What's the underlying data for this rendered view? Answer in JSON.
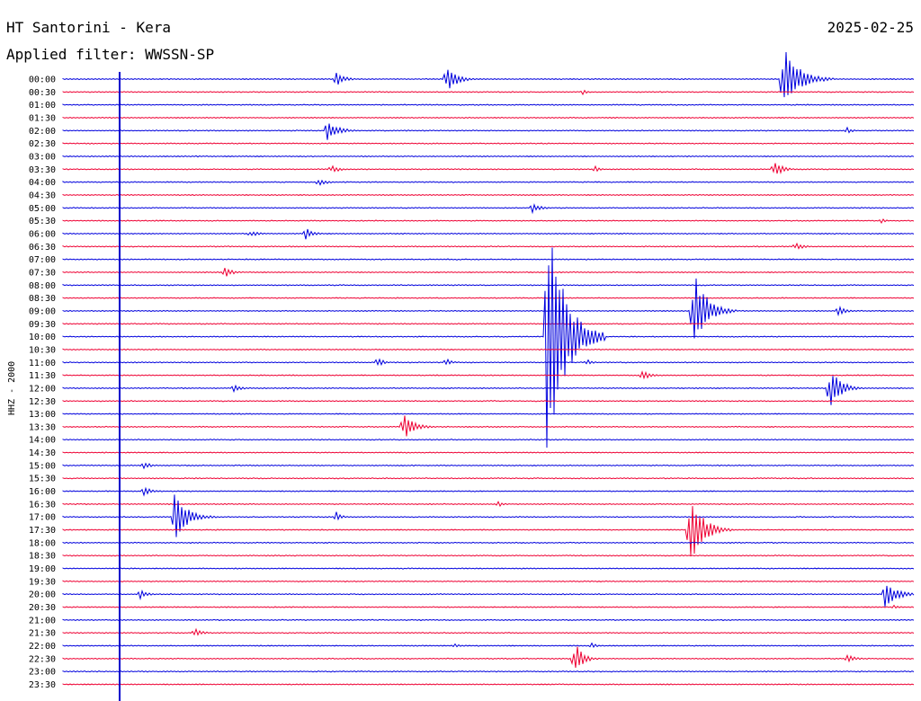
{
  "header": {
    "station": "HT Santorini - Kera",
    "date": "2025-02-25",
    "filter": "Applied filter: WWSSN-SP"
  },
  "channel_label": "HHZ - 2000",
  "colors": {
    "blue": "#0000dd",
    "red": "#ee0033",
    "marker": "#0000cc"
  },
  "time_labels": [
    "00:00",
    "00:30",
    "01:00",
    "01:30",
    "02:00",
    "02:30",
    "03:00",
    "03:30",
    "04:00",
    "04:30",
    "05:00",
    "05:30",
    "06:00",
    "06:30",
    "07:00",
    "07:30",
    "08:00",
    "08:30",
    "09:00",
    "09:30",
    "10:00",
    "10:30",
    "11:00",
    "11:30",
    "12:00",
    "12:30",
    "13:00",
    "13:30",
    "14:00",
    "14:30",
    "15:00",
    "15:30",
    "16:00",
    "16:30",
    "17:00",
    "17:30",
    "18:00",
    "18:30",
    "19:00",
    "19:30",
    "20:00",
    "20:30",
    "21:00",
    "21:30",
    "22:00",
    "22:30",
    "23:00",
    "23:30"
  ],
  "trace_colors": "alternating blue / red",
  "events": [
    {
      "row": 0,
      "pos": 0.32,
      "amp": 10,
      "len": 0.03
    },
    {
      "row": 0,
      "pos": 0.45,
      "amp": 16,
      "len": 0.04
    },
    {
      "row": 0,
      "pos": 0.845,
      "amp": 40,
      "len": 0.06
    },
    {
      "row": 1,
      "pos": 0.61,
      "amp": 3,
      "len": 0.02
    },
    {
      "row": 4,
      "pos": 0.31,
      "amp": 14,
      "len": 0.04
    },
    {
      "row": 4,
      "pos": 0.92,
      "amp": 4,
      "len": 0.02
    },
    {
      "row": 7,
      "pos": 0.315,
      "amp": 5,
      "len": 0.03
    },
    {
      "row": 7,
      "pos": 0.625,
      "amp": 4,
      "len": 0.02
    },
    {
      "row": 7,
      "pos": 0.835,
      "amp": 10,
      "len": 0.03
    },
    {
      "row": 8,
      "pos": 0.3,
      "amp": 5,
      "len": 0.03
    },
    {
      "row": 10,
      "pos": 0.55,
      "amp": 7,
      "len": 0.03
    },
    {
      "row": 11,
      "pos": 0.96,
      "amp": 3,
      "len": 0.02
    },
    {
      "row": 12,
      "pos": 0.22,
      "amp": 4,
      "len": 0.03
    },
    {
      "row": 12,
      "pos": 0.285,
      "amp": 7,
      "len": 0.03
    },
    {
      "row": 13,
      "pos": 0.86,
      "amp": 5,
      "len": 0.03
    },
    {
      "row": 15,
      "pos": 0.19,
      "amp": 6,
      "len": 0.03
    },
    {
      "row": 18,
      "pos": 0.74,
      "amp": 48,
      "len": 0.05
    },
    {
      "row": 18,
      "pos": 0.91,
      "amp": 6,
      "len": 0.03
    },
    {
      "row": 20,
      "pos": 0.567,
      "amp": 150,
      "len": 0.07
    },
    {
      "row": 22,
      "pos": 0.37,
      "amp": 7,
      "len": 0.02
    },
    {
      "row": 22,
      "pos": 0.45,
      "amp": 5,
      "len": 0.02
    },
    {
      "row": 22,
      "pos": 0.615,
      "amp": 4,
      "len": 0.02
    },
    {
      "row": 23,
      "pos": 0.68,
      "amp": 6,
      "len": 0.03
    },
    {
      "row": 24,
      "pos": 0.2,
      "amp": 5,
      "len": 0.03
    },
    {
      "row": 24,
      "pos": 0.9,
      "amp": 28,
      "len": 0.04
    },
    {
      "row": 27,
      "pos": 0.4,
      "amp": 16,
      "len": 0.04
    },
    {
      "row": 30,
      "pos": 0.095,
      "amp": 4,
      "len": 0.03
    },
    {
      "row": 32,
      "pos": 0.095,
      "amp": 5,
      "len": 0.03
    },
    {
      "row": 33,
      "pos": 0.51,
      "amp": 4,
      "len": 0.02
    },
    {
      "row": 34,
      "pos": 0.13,
      "amp": 30,
      "len": 0.05
    },
    {
      "row": 34,
      "pos": 0.32,
      "amp": 7,
      "len": 0.02
    },
    {
      "row": 35,
      "pos": 0.735,
      "amp": 48,
      "len": 0.05
    },
    {
      "row": 40,
      "pos": 0.09,
      "amp": 6,
      "len": 0.03
    },
    {
      "row": 40,
      "pos": 0.965,
      "amp": 14,
      "len": 0.05
    },
    {
      "row": 41,
      "pos": 0.975,
      "amp": 3,
      "len": 0.02
    },
    {
      "row": 43,
      "pos": 0.155,
      "amp": 5,
      "len": 0.03
    },
    {
      "row": 44,
      "pos": 0.46,
      "amp": 3,
      "len": 0.02
    },
    {
      "row": 44,
      "pos": 0.62,
      "amp": 4,
      "len": 0.02
    },
    {
      "row": 45,
      "pos": 0.6,
      "amp": 22,
      "len": 0.03
    },
    {
      "row": 45,
      "pos": 0.92,
      "amp": 6,
      "len": 0.03
    }
  ]
}
